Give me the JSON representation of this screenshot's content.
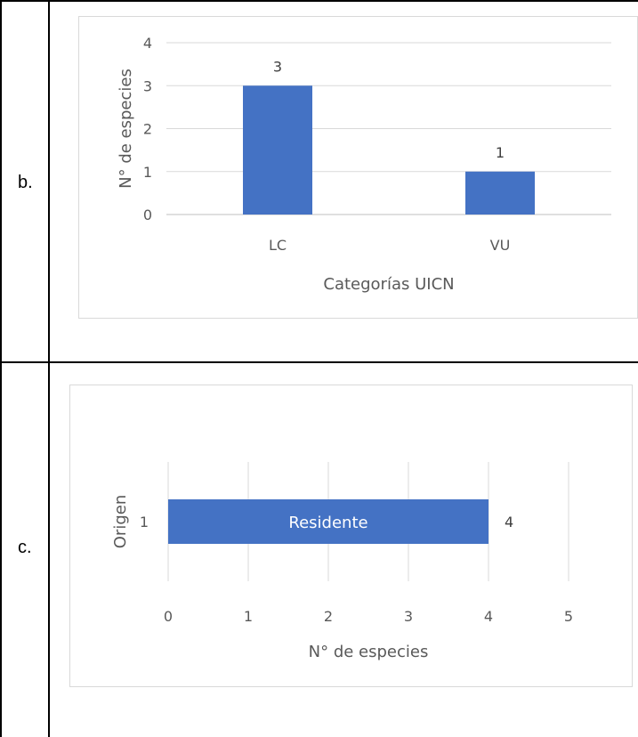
{
  "rows": [
    {
      "label": "b."
    },
    {
      "label": "c."
    }
  ],
  "chart_data": [
    {
      "type": "bar",
      "categories": [
        "LC",
        "VU"
      ],
      "values": [
        3,
        1
      ],
      "data_labels": [
        "3",
        "1"
      ],
      "title": "",
      "xlabel": "Categorías UICN",
      "ylabel": "N° de especies",
      "ylim": [
        0,
        4
      ],
      "yticks": [
        "0",
        "1",
        "2",
        "3",
        "4"
      ],
      "grid": true,
      "bar_color": "#4472c4"
    },
    {
      "type": "bar",
      "orientation": "horizontal",
      "categories": [
        "1"
      ],
      "values": [
        4
      ],
      "data_labels": [
        "4"
      ],
      "bar_text": [
        "Residente"
      ],
      "title": "",
      "xlabel": "N° de especies",
      "ylabel": "Origen",
      "xlim": [
        0,
        5
      ],
      "xticks": [
        "0",
        "1",
        "2",
        "3",
        "4",
        "5"
      ],
      "grid": true,
      "bar_color": "#4472c4"
    }
  ]
}
